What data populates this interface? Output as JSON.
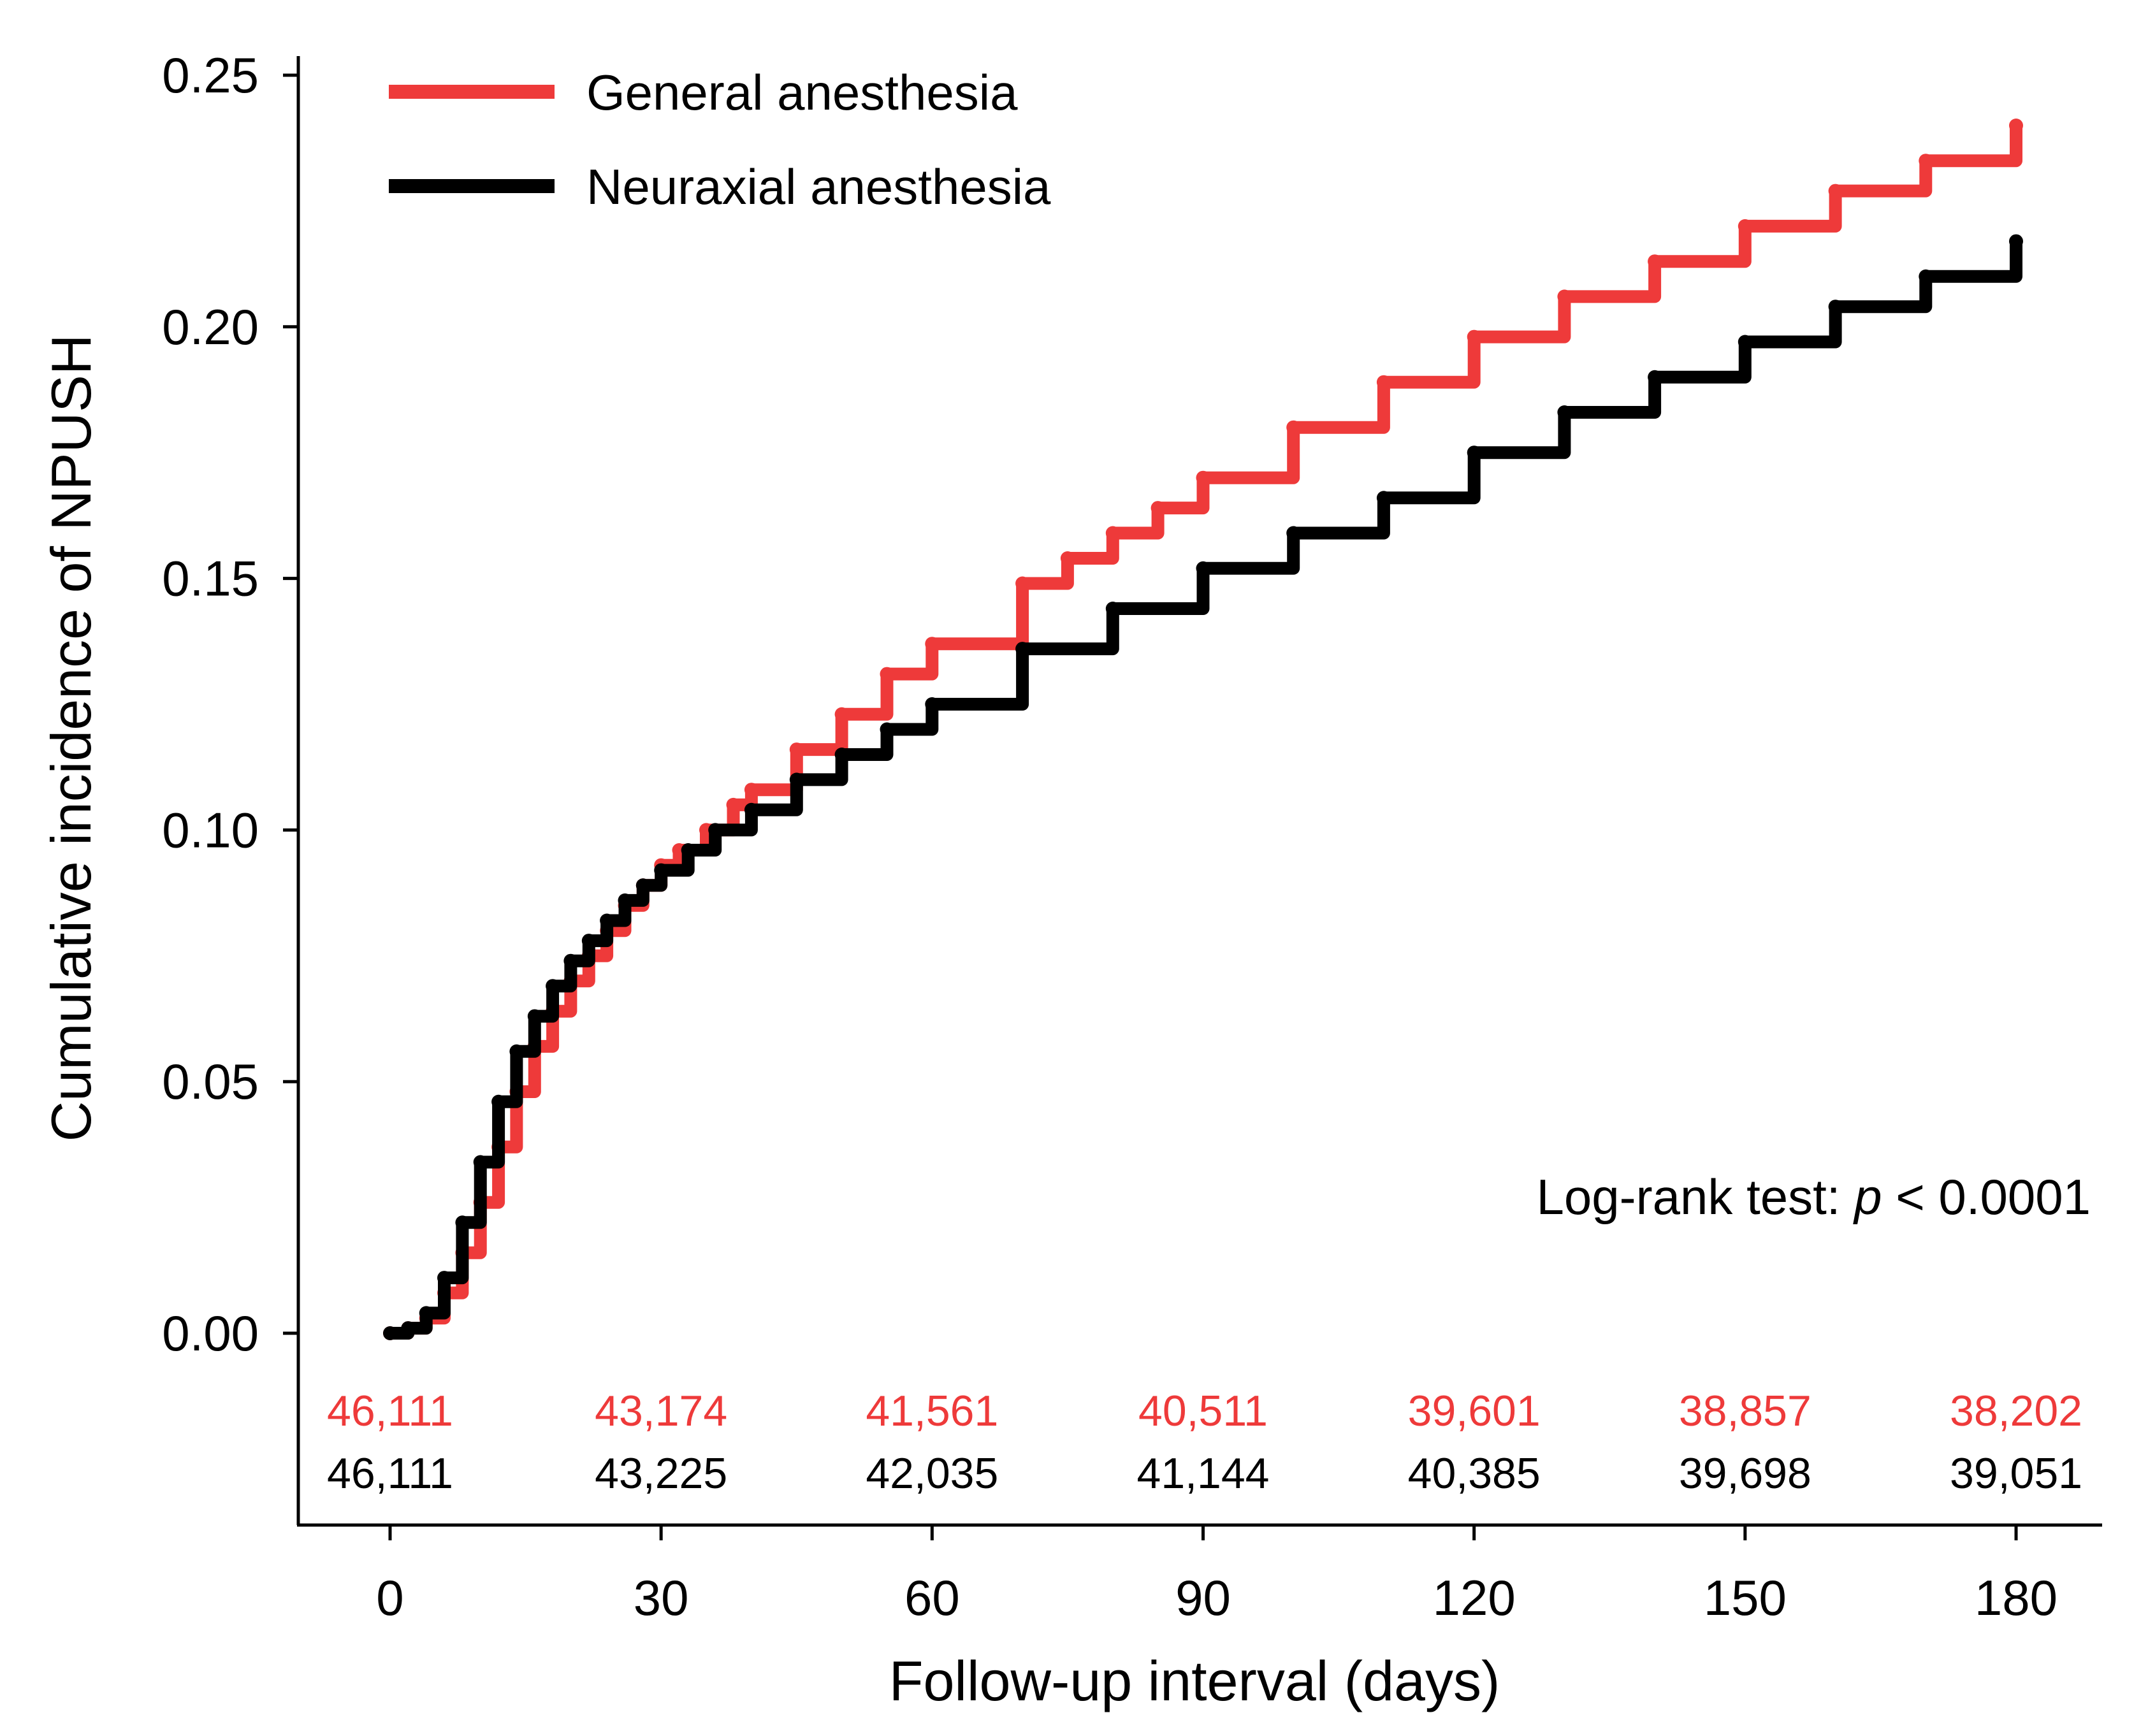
{
  "chart_data": {
    "type": "line",
    "subtype": "cumulative-incidence",
    "title": "",
    "xlabel": "Follow-up interval (days)",
    "ylabel": "Cumulative incidence of NPUSH",
    "xlim": [
      -15,
      190
    ],
    "ylim": [
      -0.038,
      0.252
    ],
    "x_ticks": [
      0,
      30,
      60,
      90,
      120,
      150,
      180
    ],
    "y_ticks": [
      0.0,
      0.05,
      0.1,
      0.15,
      0.2,
      0.25
    ],
    "y_tick_labels": [
      "0.00",
      "0.05",
      "0.10",
      "0.15",
      "0.20",
      "0.25"
    ],
    "grid": false,
    "legend_position": "top-left",
    "annotation": {
      "prefix": "Log-rank test: ",
      "italic": "p",
      "suffix": " < 0.0001"
    },
    "series": [
      {
        "name": "General anesthesia",
        "color": "#ee3a3a",
        "x": [
          0,
          2,
          4,
          6,
          8,
          10,
          12,
          14,
          16,
          18,
          20,
          22,
          24,
          26,
          28,
          30,
          32,
          35,
          38,
          40,
          45,
          50,
          55,
          60,
          70,
          75,
          80,
          85,
          90,
          100,
          110,
          120,
          130,
          140,
          150,
          160,
          170,
          180
        ],
        "values": [
          0.0,
          0.001,
          0.003,
          0.008,
          0.016,
          0.026,
          0.037,
          0.048,
          0.057,
          0.064,
          0.07,
          0.075,
          0.08,
          0.085,
          0.089,
          0.093,
          0.096,
          0.1,
          0.105,
          0.108,
          0.116,
          0.123,
          0.131,
          0.137,
          0.149,
          0.154,
          0.159,
          0.164,
          0.17,
          0.18,
          0.189,
          0.198,
          0.206,
          0.213,
          0.22,
          0.227,
          0.233,
          0.24
        ]
      },
      {
        "name": "Neuraxial anesthesia",
        "color": "#000000",
        "x": [
          0,
          2,
          4,
          6,
          8,
          10,
          12,
          14,
          16,
          18,
          20,
          22,
          24,
          26,
          28,
          30,
          33,
          36,
          40,
          45,
          50,
          55,
          60,
          70,
          80,
          90,
          100,
          110,
          120,
          130,
          140,
          150,
          160,
          170,
          180
        ],
        "values": [
          0.0,
          0.001,
          0.004,
          0.011,
          0.022,
          0.034,
          0.046,
          0.056,
          0.063,
          0.069,
          0.074,
          0.078,
          0.082,
          0.086,
          0.089,
          0.092,
          0.096,
          0.1,
          0.104,
          0.11,
          0.115,
          0.12,
          0.125,
          0.136,
          0.144,
          0.152,
          0.159,
          0.166,
          0.175,
          0.183,
          0.19,
          0.197,
          0.204,
          0.21,
          0.217
        ]
      }
    ],
    "number_at_risk": {
      "times": [
        0,
        30,
        60,
        90,
        120,
        150,
        180
      ],
      "rows": [
        {
          "name": "General anesthesia",
          "color": "#ee3a3a",
          "values": [
            "46,111",
            "43,174",
            "41,561",
            "40,511",
            "39,601",
            "38,857",
            "38,202"
          ]
        },
        {
          "name": "Neuraxial anesthesia",
          "color": "#000000",
          "values": [
            "46,111",
            "43,225",
            "42,035",
            "41,144",
            "40,385",
            "39,698",
            "39,051"
          ]
        }
      ]
    }
  }
}
